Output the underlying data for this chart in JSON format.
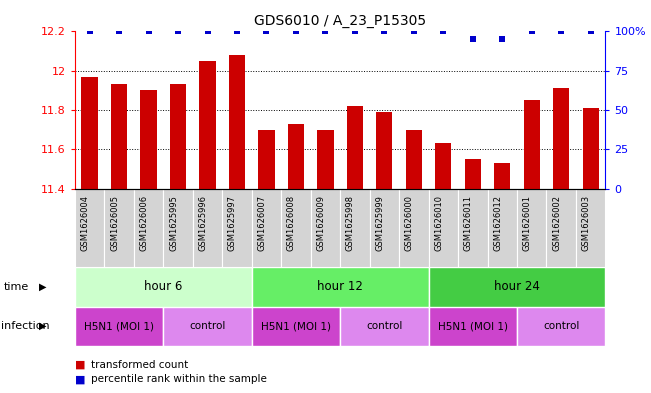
{
  "title": "GDS6010 / A_23_P15305",
  "samples": [
    "GSM1626004",
    "GSM1626005",
    "GSM1626006",
    "GSM1625995",
    "GSM1625996",
    "GSM1625997",
    "GSM1626007",
    "GSM1626008",
    "GSM1626009",
    "GSM1625998",
    "GSM1625999",
    "GSM1626000",
    "GSM1626010",
    "GSM1626011",
    "GSM1626012",
    "GSM1626001",
    "GSM1626002",
    "GSM1626003"
  ],
  "bar_values": [
    11.97,
    11.93,
    11.9,
    11.93,
    12.05,
    12.08,
    11.7,
    11.73,
    11.7,
    11.82,
    11.79,
    11.7,
    11.63,
    11.55,
    11.53,
    11.85,
    11.91,
    11.81
  ],
  "dot_values": [
    100,
    100,
    100,
    100,
    100,
    100,
    100,
    100,
    100,
    100,
    100,
    100,
    100,
    95,
    95,
    100,
    100,
    100
  ],
  "ylim_left": [
    11.4,
    12.2
  ],
  "ylim_right": [
    0,
    100
  ],
  "yticks_left": [
    11.4,
    11.6,
    11.8,
    12.0,
    12.2
  ],
  "yticks_right": [
    0,
    25,
    50,
    75,
    100
  ],
  "bar_color": "#cc0000",
  "dot_color": "#0000cc",
  "background_color": "#ffffff",
  "time_groups": [
    {
      "label": "hour 6",
      "start": 0,
      "end": 6,
      "color": "#ccffcc"
    },
    {
      "label": "hour 12",
      "start": 6,
      "end": 12,
      "color": "#66ee66"
    },
    {
      "label": "hour 24",
      "start": 12,
      "end": 18,
      "color": "#44cc44"
    }
  ],
  "infection_groups": [
    {
      "label": "H5N1 (MOI 1)",
      "start": 0,
      "end": 3,
      "color": "#cc44cc"
    },
    {
      "label": "control",
      "start": 3,
      "end": 6,
      "color": "#dd88ee"
    },
    {
      "label": "H5N1 (MOI 1)",
      "start": 6,
      "end": 9,
      "color": "#cc44cc"
    },
    {
      "label": "control",
      "start": 9,
      "end": 12,
      "color": "#dd88ee"
    },
    {
      "label": "H5N1 (MOI 1)",
      "start": 12,
      "end": 15,
      "color": "#cc44cc"
    },
    {
      "label": "control",
      "start": 15,
      "end": 18,
      "color": "#dd88ee"
    }
  ],
  "time_row_label": "time",
  "infection_row_label": "infection",
  "legend_bar_label": "transformed count",
  "legend_dot_label": "percentile rank within the sample",
  "bar_width": 0.55,
  "ybaseline": 11.4
}
